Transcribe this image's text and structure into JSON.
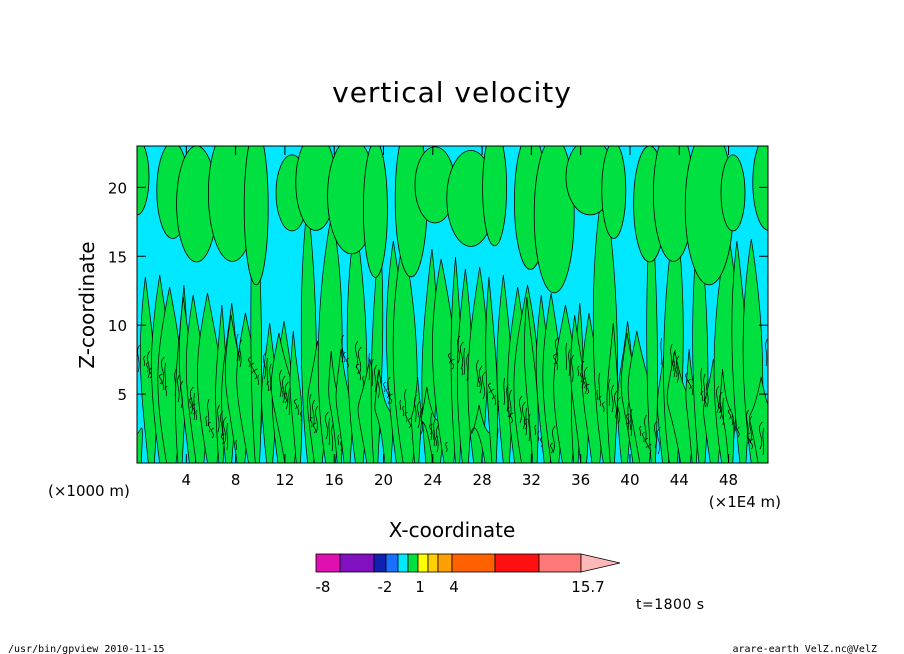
{
  "chart_data": {
    "type": "heatmap",
    "title": "vertical velocity",
    "xlabel": "X-coordinate",
    "ylabel": "Z-coordinate",
    "x_unit_left": "(×1000 m)",
    "x_unit_right": "(×1E4 m)",
    "xlim": [
      0,
      51.2
    ],
    "ylim": [
      0,
      23
    ],
    "x_ticks": [
      4,
      8,
      12,
      16,
      20,
      24,
      28,
      32,
      36,
      40,
      44,
      48
    ],
    "y_ticks": [
      5,
      10,
      15,
      20
    ],
    "colorbar": {
      "labels": [
        "-8",
        "-2",
        "1",
        "4",
        "15.7"
      ],
      "colors": [
        "#e010b0",
        "#8010c0",
        "#1020b0",
        "#1870ff",
        "#00e8ff",
        "#00e040",
        "#ffff00",
        "#ffd000",
        "#ffa000",
        "#ff6000",
        "#ff1010",
        "#ff7878",
        "#ffb8b8"
      ]
    },
    "field_colors": {
      "negative": "#00e8ff",
      "positive": "#00e040",
      "contour": "#000000"
    },
    "time_label": "t=1800 s",
    "footer_left": "/usr/bin/gpview   2010-11-15",
    "footer_right": "arare-earth_VelZ.nc@VelZ"
  }
}
